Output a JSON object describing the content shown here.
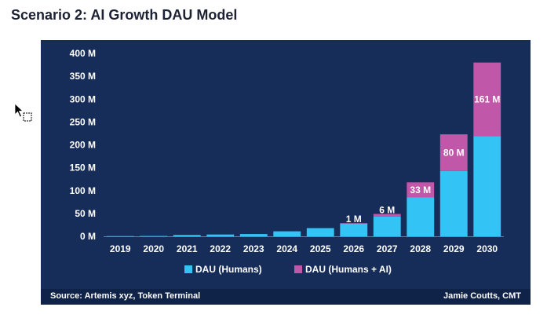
{
  "page": {
    "title": "Scenario 2: AI Growth DAU Model"
  },
  "chart_data": {
    "type": "bar",
    "stacked": true,
    "categories": [
      "2019",
      "2020",
      "2021",
      "2022",
      "2023",
      "2024",
      "2025",
      "2026",
      "2027",
      "2028",
      "2029",
      "2030"
    ],
    "series": [
      {
        "name": "DAU (Humans)",
        "color": "#33c4f5",
        "values": [
          0.5,
          0.8,
          3,
          4,
          5,
          11,
          18,
          28,
          43,
          85,
          143,
          219
        ]
      },
      {
        "name": "DAU (Humans + AI)",
        "color": "#c157a8",
        "values": [
          0,
          0,
          0,
          0,
          0,
          0,
          0,
          1,
          6,
          33,
          80,
          161
        ]
      }
    ],
    "data_labels": [
      {
        "category": "2026",
        "text": "1 M"
      },
      {
        "category": "2027",
        "text": "6 M"
      },
      {
        "category": "2028",
        "text": "33 M"
      },
      {
        "category": "2029",
        "text": "80 M"
      },
      {
        "category": "2030",
        "text": "161 M"
      }
    ],
    "yticks": [
      0,
      50,
      100,
      150,
      200,
      250,
      300,
      350,
      400
    ],
    "ytick_labels": [
      "0 M",
      "50 M",
      "100 M",
      "150 M",
      "200 M",
      "250 M",
      "300 M",
      "350 M",
      "400 M"
    ],
    "ylim": [
      0,
      400
    ],
    "legend": {
      "position": "bottom"
    }
  },
  "footer": {
    "source": "Source: Artemis xyz, Token Terminal",
    "author": "Jamie Coutts, CMT"
  }
}
